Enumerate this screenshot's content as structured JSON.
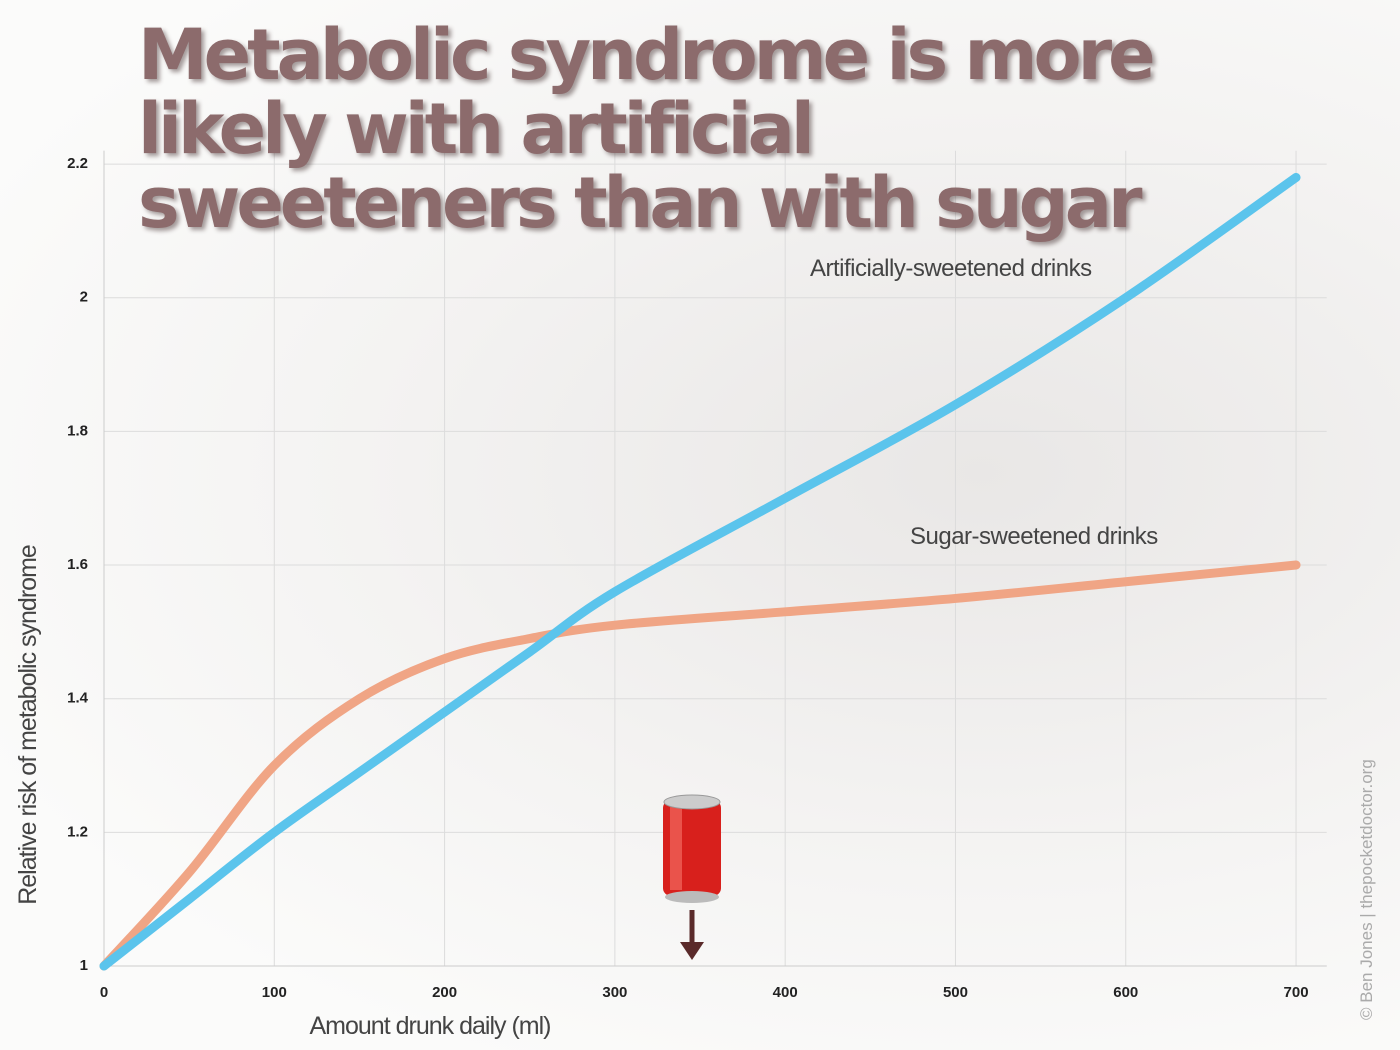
{
  "chart_data": {
    "type": "line",
    "title": "Metabolic syndrome is more likely with artificial sweeteners than with sugar",
    "x_label": "Amount drunk daily (ml)",
    "y_label": "Relative risk of metabolic syndrome",
    "annotations": [
      "Artificially-sweetened drinks",
      "Sugar-sweetened drinks"
    ],
    "credit": "© Ben Jones | thepocketdoctor.org",
    "x": [
      0,
      50,
      100,
      150,
      200,
      250,
      300,
      400,
      500,
      600,
      700
    ],
    "series": [
      {
        "name": "Artificially-sweetened drinks",
        "color": "#5bc4ec",
        "values": [
          1.0,
          1.1,
          1.2,
          1.29,
          1.38,
          1.47,
          1.56,
          1.7,
          1.84,
          2.0,
          2.18
        ]
      },
      {
        "name": "Sugar-sweetened drinks",
        "color": "#f0a585",
        "values": [
          1.0,
          1.14,
          1.3,
          1.4,
          1.46,
          1.49,
          1.51,
          1.53,
          1.55,
          1.575,
          1.6
        ]
      }
    ],
    "xlim": [
      0,
      718
    ],
    "ylim": [
      1,
      2.22
    ],
    "xticks": [
      0,
      100,
      200,
      300,
      400,
      500,
      600,
      700
    ],
    "yticks": [
      1,
      1.2,
      1.4,
      1.6,
      1.8,
      2,
      2.2
    ],
    "grid": true
  }
}
